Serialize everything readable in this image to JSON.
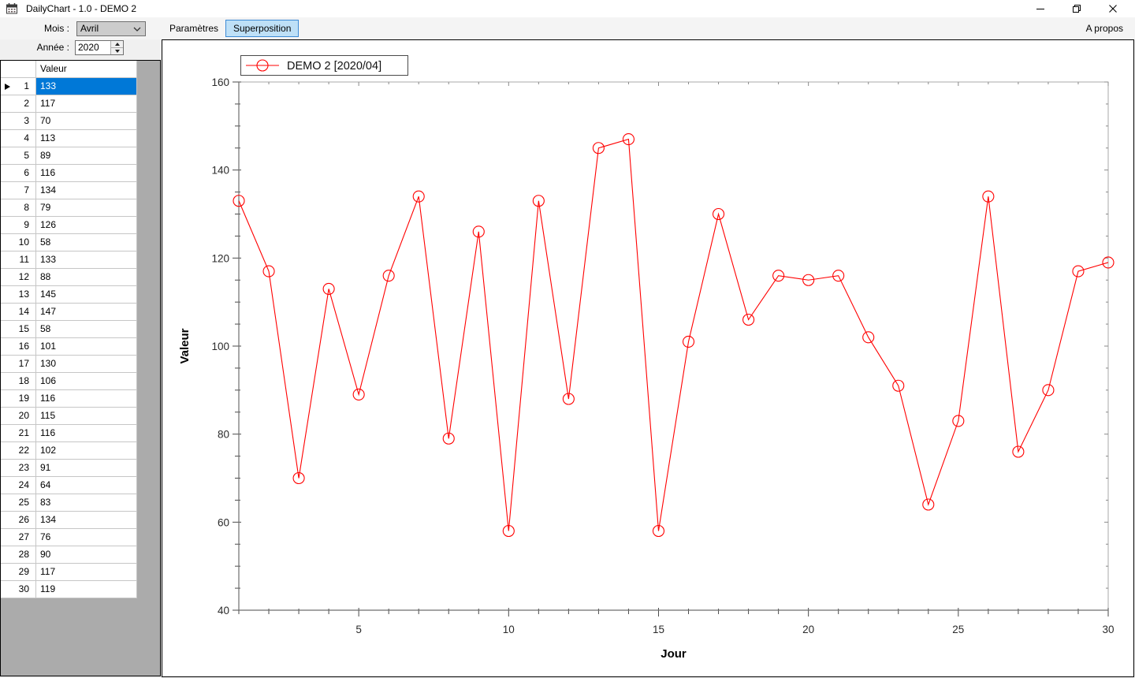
{
  "window": {
    "title": "DailyChart - 1.0 - DEMO 2"
  },
  "toolbar": {
    "mois_label": "Mois :",
    "mois_value": "Avril",
    "annee_label": "Année :",
    "annee_value": "2020",
    "parametres_label": "Paramètres",
    "superposition_label": "Superposition",
    "apropos_label": "A propos"
  },
  "grid": {
    "corner_header": "",
    "value_column_header": "Valeur",
    "selected_row_number": 1,
    "row_headers": [
      1,
      2,
      3,
      4,
      5,
      6,
      7,
      8,
      9,
      10,
      11,
      12,
      13,
      14,
      15,
      16,
      17,
      18,
      19,
      20,
      21,
      22,
      23,
      24,
      25,
      26,
      27,
      28,
      29,
      30
    ],
    "values": [
      133,
      117,
      70,
      113,
      89,
      116,
      134,
      79,
      126,
      58,
      133,
      88,
      145,
      147,
      58,
      101,
      130,
      106,
      116,
      115,
      116,
      102,
      91,
      64,
      83,
      134,
      76,
      90,
      117,
      119
    ]
  },
  "chart_data": {
    "type": "line",
    "series": [
      {
        "name": "DEMO 2 [2020/04]",
        "x": [
          1,
          2,
          3,
          4,
          5,
          6,
          7,
          8,
          9,
          10,
          11,
          12,
          13,
          14,
          15,
          16,
          17,
          18,
          19,
          20,
          21,
          22,
          23,
          24,
          25,
          26,
          27,
          28,
          29,
          30
        ],
        "values": [
          133,
          117,
          70,
          113,
          89,
          116,
          134,
          79,
          126,
          58,
          133,
          88,
          145,
          147,
          58,
          101,
          130,
          106,
          116,
          115,
          116,
          102,
          91,
          64,
          83,
          134,
          76,
          90,
          117,
          119
        ],
        "color": "#ff0000",
        "marker": "open-circle"
      }
    ],
    "xlabel": "Jour",
    "ylabel": "Valeur",
    "xlim": [
      1,
      30
    ],
    "ylim": [
      40,
      160
    ],
    "x_major_ticks": [
      5,
      10,
      15,
      20,
      25,
      30
    ],
    "y_major_ticks": [
      40,
      60,
      80,
      100,
      120,
      140,
      160
    ],
    "x_minor_step": 1,
    "y_minor_step": 5,
    "grid": false,
    "legend_position": "top-left"
  },
  "colors": {
    "selection_blue": "#0078d7",
    "checked_button_bg": "#bee0f7",
    "checked_button_border": "#3d8bd6",
    "series_red": "#ff0000"
  }
}
